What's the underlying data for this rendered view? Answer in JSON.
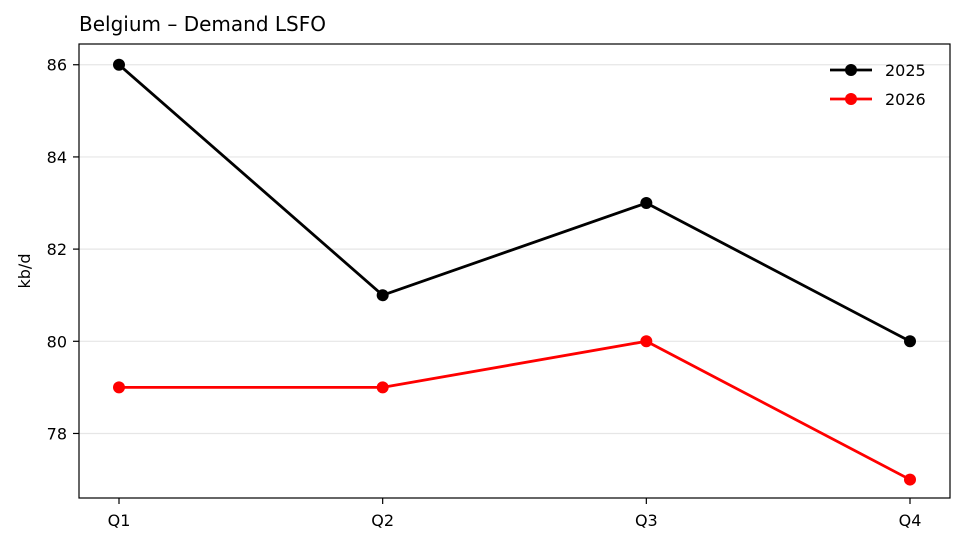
{
  "chart_data": {
    "type": "line",
    "title": "Belgium – Demand LSFO",
    "xlabel": "",
    "ylabel": "kb/d",
    "categories": [
      "Q1",
      "Q2",
      "Q3",
      "Q4"
    ],
    "series": [
      {
        "name": "2025",
        "color": "#000000",
        "values": [
          86,
          81,
          83,
          80
        ]
      },
      {
        "name": "2026",
        "color": "#ff0000",
        "values": [
          79,
          79,
          80,
          77
        ]
      }
    ],
    "ylim": [
      76.6,
      86.45
    ],
    "yticks": [
      78,
      80,
      82,
      84,
      86
    ],
    "grid": "y",
    "legend_position": "top-right"
  }
}
